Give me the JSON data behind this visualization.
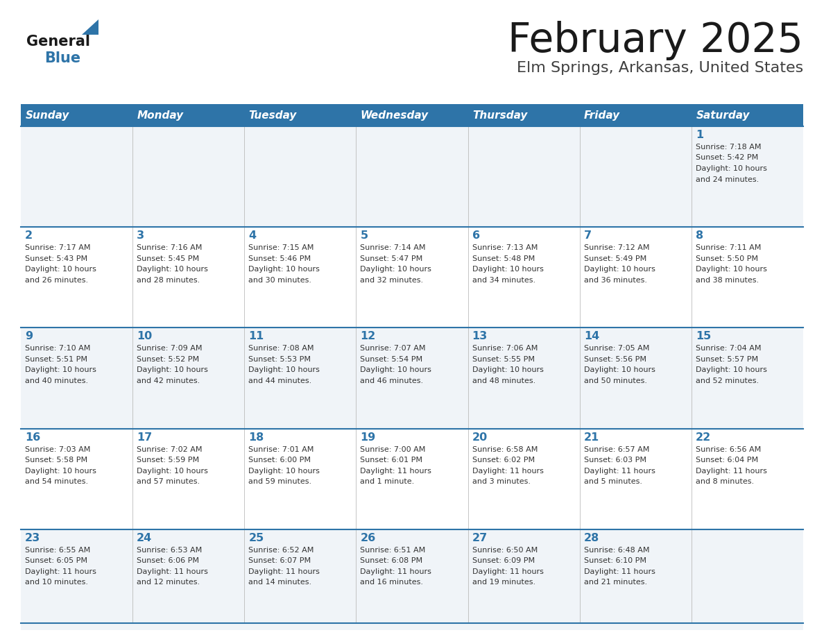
{
  "title": "February 2025",
  "subtitle": "Elm Springs, Arkansas, United States",
  "header_color": "#2E74A8",
  "header_text_color": "#FFFFFF",
  "cell_bg_color": "#F0F4F8",
  "day_number_color": "#2E74A8",
  "text_color": "#333333",
  "days_of_week": [
    "Sunday",
    "Monday",
    "Tuesday",
    "Wednesday",
    "Thursday",
    "Friday",
    "Saturday"
  ],
  "weeks": [
    [
      {
        "day": null
      },
      {
        "day": null
      },
      {
        "day": null
      },
      {
        "day": null
      },
      {
        "day": null
      },
      {
        "day": null
      },
      {
        "day": 1,
        "sunrise": "7:18 AM",
        "sunset": "5:42 PM",
        "daylight": "10 hours and 24 minutes."
      }
    ],
    [
      {
        "day": 2,
        "sunrise": "7:17 AM",
        "sunset": "5:43 PM",
        "daylight": "10 hours and 26 minutes."
      },
      {
        "day": 3,
        "sunrise": "7:16 AM",
        "sunset": "5:45 PM",
        "daylight": "10 hours and 28 minutes."
      },
      {
        "day": 4,
        "sunrise": "7:15 AM",
        "sunset": "5:46 PM",
        "daylight": "10 hours and 30 minutes."
      },
      {
        "day": 5,
        "sunrise": "7:14 AM",
        "sunset": "5:47 PM",
        "daylight": "10 hours and 32 minutes."
      },
      {
        "day": 6,
        "sunrise": "7:13 AM",
        "sunset": "5:48 PM",
        "daylight": "10 hours and 34 minutes."
      },
      {
        "day": 7,
        "sunrise": "7:12 AM",
        "sunset": "5:49 PM",
        "daylight": "10 hours and 36 minutes."
      },
      {
        "day": 8,
        "sunrise": "7:11 AM",
        "sunset": "5:50 PM",
        "daylight": "10 hours and 38 minutes."
      }
    ],
    [
      {
        "day": 9,
        "sunrise": "7:10 AM",
        "sunset": "5:51 PM",
        "daylight": "10 hours and 40 minutes."
      },
      {
        "day": 10,
        "sunrise": "7:09 AM",
        "sunset": "5:52 PM",
        "daylight": "10 hours and 42 minutes."
      },
      {
        "day": 11,
        "sunrise": "7:08 AM",
        "sunset": "5:53 PM",
        "daylight": "10 hours and 44 minutes."
      },
      {
        "day": 12,
        "sunrise": "7:07 AM",
        "sunset": "5:54 PM",
        "daylight": "10 hours and 46 minutes."
      },
      {
        "day": 13,
        "sunrise": "7:06 AM",
        "sunset": "5:55 PM",
        "daylight": "10 hours and 48 minutes."
      },
      {
        "day": 14,
        "sunrise": "7:05 AM",
        "sunset": "5:56 PM",
        "daylight": "10 hours and 50 minutes."
      },
      {
        "day": 15,
        "sunrise": "7:04 AM",
        "sunset": "5:57 PM",
        "daylight": "10 hours and 52 minutes."
      }
    ],
    [
      {
        "day": 16,
        "sunrise": "7:03 AM",
        "sunset": "5:58 PM",
        "daylight": "10 hours and 54 minutes."
      },
      {
        "day": 17,
        "sunrise": "7:02 AM",
        "sunset": "5:59 PM",
        "daylight": "10 hours and 57 minutes."
      },
      {
        "day": 18,
        "sunrise": "7:01 AM",
        "sunset": "6:00 PM",
        "daylight": "10 hours and 59 minutes."
      },
      {
        "day": 19,
        "sunrise": "7:00 AM",
        "sunset": "6:01 PM",
        "daylight": "11 hours and 1 minute."
      },
      {
        "day": 20,
        "sunrise": "6:58 AM",
        "sunset": "6:02 PM",
        "daylight": "11 hours and 3 minutes."
      },
      {
        "day": 21,
        "sunrise": "6:57 AM",
        "sunset": "6:03 PM",
        "daylight": "11 hours and 5 minutes."
      },
      {
        "day": 22,
        "sunrise": "6:56 AM",
        "sunset": "6:04 PM",
        "daylight": "11 hours and 8 minutes."
      }
    ],
    [
      {
        "day": 23,
        "sunrise": "6:55 AM",
        "sunset": "6:05 PM",
        "daylight": "11 hours and 10 minutes."
      },
      {
        "day": 24,
        "sunrise": "6:53 AM",
        "sunset": "6:06 PM",
        "daylight": "11 hours and 12 minutes."
      },
      {
        "day": 25,
        "sunrise": "6:52 AM",
        "sunset": "6:07 PM",
        "daylight": "11 hours and 14 minutes."
      },
      {
        "day": 26,
        "sunrise": "6:51 AM",
        "sunset": "6:08 PM",
        "daylight": "11 hours and 16 minutes."
      },
      {
        "day": 27,
        "sunrise": "6:50 AM",
        "sunset": "6:09 PM",
        "daylight": "11 hours and 19 minutes."
      },
      {
        "day": 28,
        "sunrise": "6:48 AM",
        "sunset": "6:10 PM",
        "daylight": "11 hours and 21 minutes."
      },
      {
        "day": null
      }
    ]
  ],
  "fig_width": 11.88,
  "fig_height": 9.18,
  "dpi": 100
}
